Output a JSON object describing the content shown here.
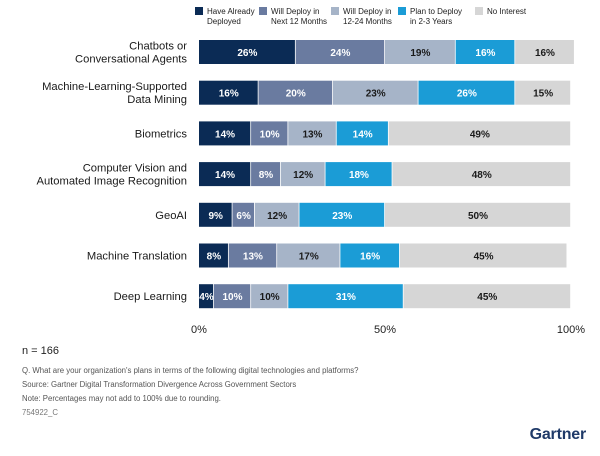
{
  "chart_data": {
    "type": "bar",
    "orientation": "horizontal",
    "stacked": true,
    "categories": [
      [
        "Chatbots or",
        "Conversational Agents"
      ],
      [
        "Machine-Learning-Supported",
        "Data Mining"
      ],
      [
        "Biometrics"
      ],
      [
        "Computer Vision and",
        "Automated Image Recognition"
      ],
      [
        "GeoAI"
      ],
      [
        "Machine Translation"
      ],
      [
        "Deep Learning"
      ]
    ],
    "series": [
      {
        "name": [
          "Have Already",
          "Deployed"
        ],
        "color": "#0b2b55",
        "values": [
          26,
          16,
          14,
          14,
          9,
          8,
          4
        ]
      },
      {
        "name": [
          "Will Deploy in",
          "Next 12 Months"
        ],
        "color": "#6a7ba0",
        "values": [
          24,
          20,
          10,
          8,
          6,
          13,
          10
        ]
      },
      {
        "name": [
          "Will Deploy in",
          "12-24 Months"
        ],
        "color": "#a6b4c8",
        "values": [
          19,
          23,
          13,
          12,
          12,
          17,
          10
        ]
      },
      {
        "name": [
          "Plan to Deploy",
          "in 2-3 Years"
        ],
        "color": "#1b9cd6",
        "values": [
          16,
          26,
          14,
          18,
          23,
          16,
          31
        ]
      },
      {
        "name": [
          "No Interest"
        ],
        "color": "#d6d6d6",
        "values": [
          16,
          15,
          49,
          48,
          50,
          45,
          45
        ]
      }
    ],
    "xlim": [
      0,
      100
    ],
    "xticks": [
      "0%",
      "50%",
      "100%"
    ],
    "legend_position": "top",
    "grid": false
  },
  "footer": {
    "n": "n = 166",
    "question": "Q. What are your organization's plans in terms of the following digital technologies and platforms?",
    "source": "Source: Gartner Digital Transformation Divergence Across Government Sectors",
    "note": "Note: Percentages may not add to 100% due to rounding.",
    "code": "754922_C",
    "logo": "Gartner"
  }
}
